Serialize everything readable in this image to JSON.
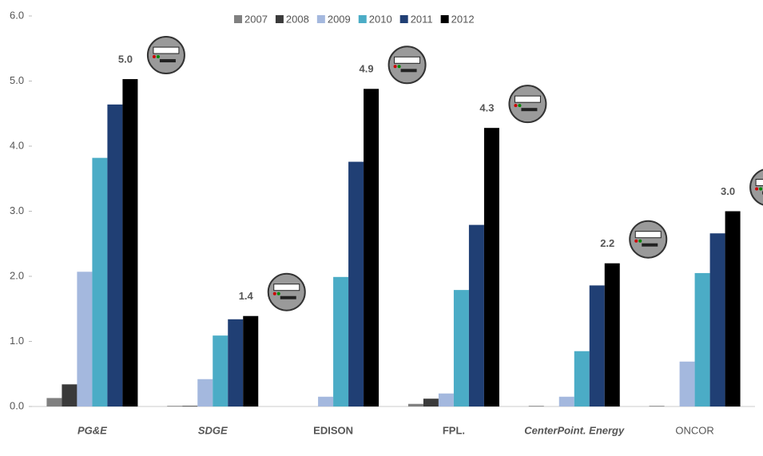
{
  "chart_data": {
    "type": "bar",
    "categories": [
      "PG&E",
      "SDGE",
      "EDISON",
      "FPL.",
      "CenterPoint. Energy",
      "ONCOR"
    ],
    "series": [
      {
        "name": "2007",
        "color": "#808080",
        "values": [
          0.13,
          0.01,
          0,
          0.04,
          0.01,
          0.01
        ]
      },
      {
        "name": "2008",
        "color": "#3a3a3a",
        "values": [
          0.34,
          0.01,
          0,
          0.12,
          0,
          0
        ]
      },
      {
        "name": "2009",
        "color": "#a4b8de",
        "values": [
          2.07,
          0.42,
          0.15,
          0.2,
          0.15,
          0.69
        ]
      },
      {
        "name": "2010",
        "color": "#4bacc6",
        "values": [
          3.82,
          1.09,
          1.99,
          1.79,
          0.85,
          2.05
        ]
      },
      {
        "name": "2011",
        "color": "#203f74",
        "values": [
          4.64,
          1.34,
          3.76,
          2.79,
          1.86,
          2.66
        ]
      },
      {
        "name": "2012",
        "color": "#000000",
        "values": [
          5.03,
          1.39,
          4.88,
          4.28,
          2.2,
          3.0
        ],
        "value_labels": [
          "5.0",
          "1.4",
          "4.9",
          "4.3",
          "2.2",
          "3.0"
        ]
      }
    ],
    "ylim": [
      0,
      6
    ],
    "yticks": [
      {
        "value": 0,
        "label": "0.0"
      },
      {
        "value": 1,
        "label": "1.0"
      },
      {
        "value": 2,
        "label": "2.0"
      },
      {
        "value": 3,
        "label": "3.0"
      },
      {
        "value": 4,
        "label": "4.0"
      },
      {
        "value": 5,
        "label": "5.0"
      },
      {
        "value": 6,
        "label": "6.0"
      }
    ],
    "grid": false,
    "legend": "top"
  }
}
